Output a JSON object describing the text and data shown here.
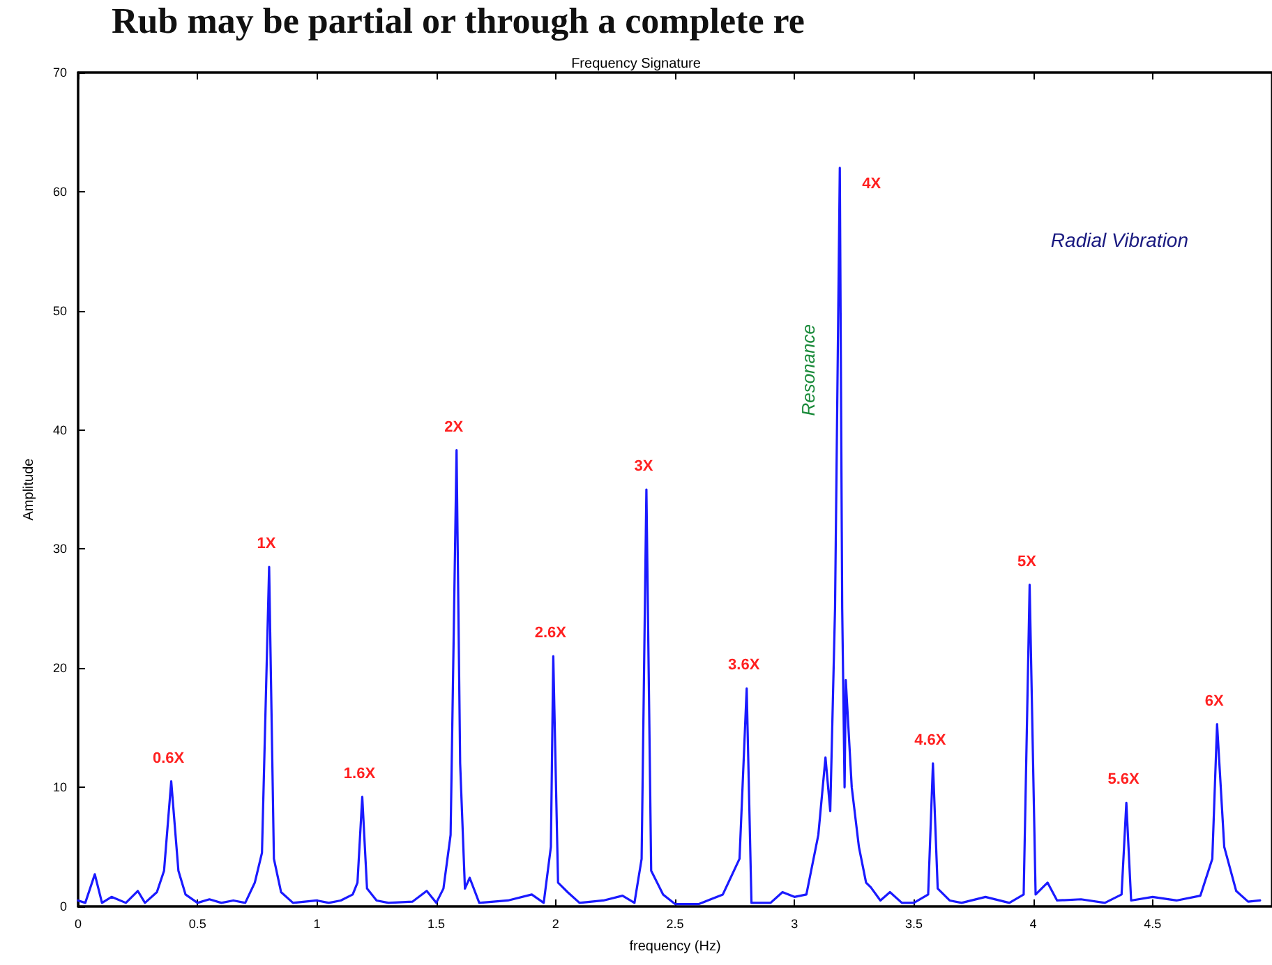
{
  "chart_data": {
    "type": "line",
    "title": "Frequency Signature",
    "xlabel": "frequency (Hz)",
    "ylabel": "Amplitude",
    "x": [
      0,
      0.03,
      0.07,
      0.1,
      0.14,
      0.2,
      0.25,
      0.28,
      0.33,
      0.36,
      0.39,
      0.42,
      0.45,
      0.5,
      0.55,
      0.6,
      0.65,
      0.7,
      0.74,
      0.77,
      0.8,
      0.82,
      0.85,
      0.9,
      1.0,
      1.05,
      1.1,
      1.15,
      1.17,
      1.19,
      1.21,
      1.25,
      1.3,
      1.4,
      1.46,
      1.5,
      1.53,
      1.56,
      1.585,
      1.6,
      1.62,
      1.64,
      1.68,
      1.8,
      1.9,
      1.95,
      1.98,
      1.99,
      2.01,
      2.05,
      2.1,
      2.2,
      2.28,
      2.33,
      2.36,
      2.38,
      2.4,
      2.45,
      2.5,
      2.6,
      2.7,
      2.77,
      2.8,
      2.82,
      2.9,
      2.95,
      3.0,
      3.05,
      3.1,
      3.13,
      3.15,
      3.17,
      3.19,
      3.2,
      3.21,
      3.215,
      3.24,
      3.27,
      3.3,
      3.32,
      3.36,
      3.4,
      3.45,
      3.5,
      3.56,
      3.58,
      3.6,
      3.65,
      3.7,
      3.8,
      3.9,
      3.96,
      3.985,
      4.01,
      4.06,
      4.1,
      4.2,
      4.3,
      4.37,
      4.39,
      4.41,
      4.5,
      4.6,
      4.7,
      4.75,
      4.77,
      4.8,
      4.85,
      4.9,
      4.95
    ],
    "series": [
      {
        "color": "#1a1aff",
        "values": [
          0.5,
          0.3,
          2.7,
          0.3,
          0.8,
          0.3,
          1.3,
          0.3,
          1.2,
          3,
          10.5,
          3,
          1,
          0.3,
          0.6,
          0.3,
          0.5,
          0.3,
          2,
          4.5,
          28.5,
          4,
          1.2,
          0.3,
          0.5,
          0.3,
          0.5,
          1,
          2,
          9.2,
          1.5,
          0.5,
          0.3,
          0.4,
          1.3,
          0.3,
          1.5,
          6,
          38.3,
          12,
          1.5,
          2.4,
          0.3,
          0.5,
          1,
          0.3,
          5,
          21,
          2,
          1.2,
          0.3,
          0.5,
          0.9,
          0.3,
          4,
          35,
          3,
          1,
          0.2,
          0.2,
          1,
          4,
          18.3,
          0.3,
          0.3,
          1.2,
          0.8,
          1,
          6,
          12.5,
          8,
          25,
          62,
          25,
          10,
          19,
          10,
          5,
          2,
          1.6,
          0.5,
          1.2,
          0.3,
          0.3,
          1,
          12,
          1.5,
          0.5,
          0.3,
          0.8,
          0.3,
          1,
          27,
          1,
          2,
          0.5,
          0.6,
          0.3,
          1,
          8.7,
          0.5,
          0.8,
          0.5,
          0.9,
          4,
          15.3,
          5,
          1.3,
          0.4,
          0.5
        ]
      }
    ],
    "xlim": [
      0,
      5
    ],
    "xticks": [
      0,
      0.5,
      1,
      1.5,
      2,
      2.5,
      3,
      3.5,
      4,
      4.5
    ],
    "ylim": [
      0,
      70
    ],
    "yticks": [
      0,
      10,
      20,
      30,
      40,
      50,
      60,
      70
    ],
    "grid": false,
    "marker": "none",
    "line_style": "solid",
    "annotations": [
      "Rub may be partial or through a complete re",
      "Resonance",
      "Radial Vibration",
      {
        "text": "0.6X",
        "x": 0.39,
        "y": 10.5
      },
      {
        "text": "1X",
        "x": 0.8,
        "y": 28.5
      },
      {
        "text": "1.6X",
        "x": 1.19,
        "y": 9.2
      },
      {
        "text": "2X",
        "x": 1.585,
        "y": 38.3
      },
      {
        "text": "2.6X",
        "x": 1.99,
        "y": 21
      },
      {
        "text": "3X",
        "x": 2.38,
        "y": 35
      },
      {
        "text": "3.6X",
        "x": 2.8,
        "y": 18.3
      },
      {
        "text": "4X",
        "x": 3.19,
        "y": 62
      },
      {
        "text": "4.6X",
        "x": 3.58,
        "y": 12
      },
      {
        "text": "5X",
        "x": 3.985,
        "y": 27
      },
      {
        "text": "5.6X",
        "x": 4.39,
        "y": 8.7
      },
      {
        "text": "6X",
        "x": 4.77,
        "y": 15.3
      }
    ]
  }
}
